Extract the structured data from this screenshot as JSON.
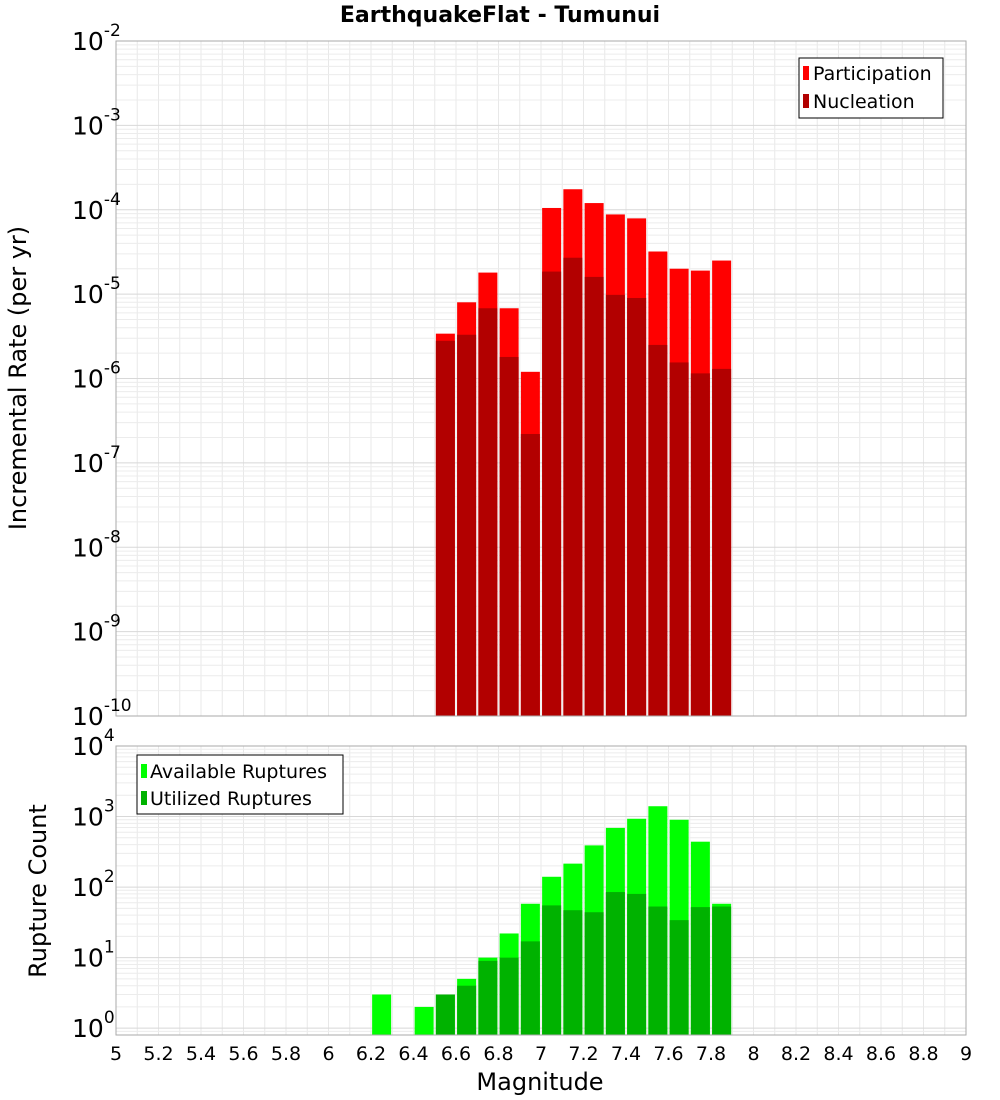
{
  "chart_data": [
    {
      "type": "bar",
      "panel": "top",
      "title": "EarthquakeFlat - Tumunui",
      "xlabel": "Magnitude",
      "ylabel": "Incremental Rate (per yr)",
      "y_scale": "log",
      "ylim": [
        1e-10,
        0.01
      ],
      "xlim": [
        5,
        9
      ],
      "grid": true,
      "legend_position": "top-right",
      "x": [
        6.55,
        6.65,
        6.75,
        6.85,
        6.95,
        7.05,
        7.15,
        7.25,
        7.35,
        7.45,
        7.55,
        7.65,
        7.75,
        7.85
      ],
      "series": [
        {
          "name": "Participation",
          "color": "#ff0000",
          "values": [
            3.4e-06,
            8e-06,
            1.8e-05,
            6.8e-06,
            1.2e-06,
            0.000105,
            0.000175,
            0.00012,
            8.8e-05,
            7.9e-05,
            3.2e-05,
            2e-05,
            1.9e-05,
            2.5e-05
          ]
        },
        {
          "name": "Nucleation",
          "color": "#b20000",
          "values": [
            2.8e-06,
            3.3e-06,
            6.8e-06,
            1.8e-06,
            2.2e-07,
            1.85e-05,
            2.7e-05,
            1.6e-05,
            9.8e-06,
            9e-06,
            2.5e-06,
            1.55e-06,
            1.15e-06,
            1.3e-06
          ]
        }
      ]
    },
    {
      "type": "bar",
      "panel": "bottom",
      "xlabel": "Magnitude",
      "ylabel": "Rupture Count",
      "y_scale": "log",
      "ylim": [
        0.8,
        10000
      ],
      "xlim": [
        5,
        9
      ],
      "grid": true,
      "legend_position": "top-left",
      "x": [
        6.25,
        6.45,
        6.55,
        6.65,
        6.75,
        6.85,
        6.95,
        7.05,
        7.15,
        7.25,
        7.35,
        7.45,
        7.55,
        7.65,
        7.75,
        7.85
      ],
      "series": [
        {
          "name": "Available Ruptures",
          "color": "#00ff00",
          "values": [
            3,
            2,
            3,
            5,
            10,
            22,
            58,
            140,
            215,
            390,
            690,
            930,
            1400,
            900,
            440,
            58
          ]
        },
        {
          "name": "Utilized Ruptures",
          "color": "#00b200",
          "values": [
            null,
            null,
            3,
            4,
            9,
            10,
            17,
            55,
            47,
            44,
            85,
            80,
            53,
            34,
            52,
            53
          ]
        }
      ]
    }
  ],
  "x_ticks": [
    "5",
    "5.2",
    "5.4",
    "5.6",
    "5.8",
    "6",
    "6.2",
    "6.4",
    "6.6",
    "6.8",
    "7",
    "7.2",
    "7.4",
    "7.6",
    "7.8",
    "8",
    "8.2",
    "8.4",
    "8.6",
    "8.8",
    "9"
  ],
  "top_y_ticks": [
    {
      "base": "10",
      "exp": "-2"
    },
    {
      "base": "10",
      "exp": "-3"
    },
    {
      "base": "10",
      "exp": "-4"
    },
    {
      "base": "10",
      "exp": "-5"
    },
    {
      "base": "10",
      "exp": "-6"
    },
    {
      "base": "10",
      "exp": "-7"
    },
    {
      "base": "10",
      "exp": "-8"
    },
    {
      "base": "10",
      "exp": "-9"
    },
    {
      "base": "10",
      "exp": "-10"
    }
  ],
  "bottom_y_ticks": [
    {
      "base": "10",
      "exp": "4"
    },
    {
      "base": "10",
      "exp": "3"
    },
    {
      "base": "10",
      "exp": "2"
    },
    {
      "base": "10",
      "exp": "1"
    },
    {
      "base": "10",
      "exp": "0"
    }
  ]
}
